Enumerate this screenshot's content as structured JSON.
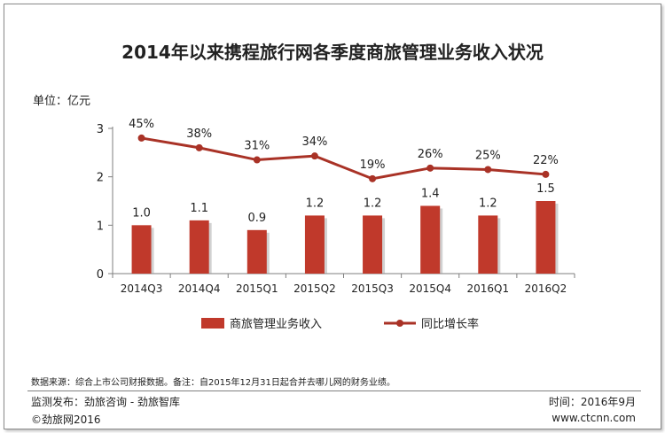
{
  "chart_data": {
    "type": "bar+line",
    "title": "2014年以来携程旅行网各季度商旅管理业务收入状况",
    "unit_label": "单位：亿元",
    "categories": [
      "2014Q3",
      "2014Q4",
      "2015Q1",
      "2015Q2",
      "2015Q3",
      "2015Q4",
      "2016Q1",
      "2016Q2"
    ],
    "ylim": [
      0,
      3
    ],
    "yticks": [
      0,
      1,
      2,
      3
    ],
    "series": [
      {
        "name": "商旅管理业务收入",
        "kind": "bar",
        "color": "#c0392b",
        "values": [
          1.0,
          1.1,
          0.9,
          1.2,
          1.2,
          1.4,
          1.2,
          1.5
        ],
        "labels": [
          "1.0",
          "1.1",
          "0.9",
          "1.2",
          "1.2",
          "1.4",
          "1.2",
          "1.5"
        ]
      },
      {
        "name": "同比增长率",
        "kind": "line",
        "color": "#a93226",
        "values": [
          45,
          38,
          31,
          34,
          19,
          26,
          25,
          22
        ],
        "labels": [
          "45%",
          "38%",
          "31%",
          "34%",
          "19%",
          "26%",
          "25%",
          "22%"
        ],
        "plot_values": [
          2.8,
          2.6,
          2.35,
          2.43,
          1.96,
          2.18,
          2.15,
          2.05
        ]
      }
    ],
    "legend_position": "bottom-center"
  },
  "footer": {
    "note": "数据来源：综合上市公司财报数据。备注：自2015年12月31日起合并去哪儿网的财务业绩。",
    "publisher": "监测发布：劲旅咨询 - 劲旅智库",
    "time": "时间：2016年9月",
    "copyright": "©劲旅网2016",
    "website": "www.ctcnn.com"
  }
}
